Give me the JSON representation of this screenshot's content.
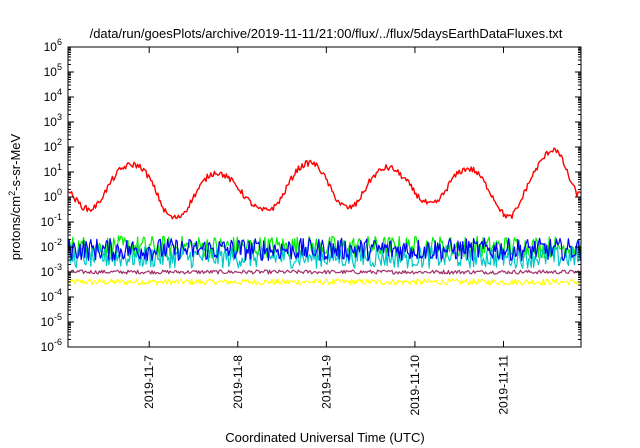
{
  "chart_data": {
    "type": "line",
    "title": "/data/run/goesPlots/archive/2019-11-11/21:00/flux/../flux/5daysEarthDataFluxes.txt",
    "xlabel": "Coordinated Universal Time (UTC)",
    "ylabel": {
      "pre": "protons/cm",
      "sup": "2",
      "post": "-s-sr-MeV"
    },
    "yscale": "log",
    "ylim": [
      1e-06,
      1000000.0
    ],
    "y_ticks": [
      {
        "value": 1e-06,
        "base": "10",
        "exp": "-6"
      },
      {
        "value": 1e-05,
        "base": "10",
        "exp": "-5"
      },
      {
        "value": 0.0001,
        "base": "10",
        "exp": "-4"
      },
      {
        "value": 0.001,
        "base": "10",
        "exp": "-3"
      },
      {
        "value": 0.01,
        "base": "10",
        "exp": "-2"
      },
      {
        "value": 0.1,
        "base": "10",
        "exp": "-1"
      },
      {
        "value": 1,
        "base": "10",
        "exp": "0"
      },
      {
        "value": 10.0,
        "base": "10",
        "exp": "1"
      },
      {
        "value": 100.0,
        "base": "10",
        "exp": "2"
      },
      {
        "value": 1000.0,
        "base": "10",
        "exp": "3"
      },
      {
        "value": 10000.0,
        "base": "10",
        "exp": "4"
      },
      {
        "value": 100000.0,
        "base": "10",
        "exp": "5"
      },
      {
        "value": 1000000.0,
        "base": "10",
        "exp": "6"
      }
    ],
    "xlim": [
      "2019-11-06T02:00",
      "2019-11-11T21:00"
    ],
    "x_ticks": [
      {
        "value": "2019-11-07T00:00",
        "label": "2019-11-7"
      },
      {
        "value": "2019-11-08T00:00",
        "label": "2019-11-8"
      },
      {
        "value": "2019-11-09T00:00",
        "label": "2019-11-9"
      },
      {
        "value": "2019-11-10T00:00",
        "label": "2019-11-10"
      },
      {
        "value": "2019-11-11T00:00",
        "label": "2019-11-11"
      }
    ],
    "grid": false,
    "series": [
      {
        "color": "#ff0000",
        "points": [
          [
            "2019-11-06T02:00",
            2
          ],
          [
            "2019-11-06T04:00",
            0.8
          ],
          [
            "2019-11-06T06:00",
            0.4
          ],
          [
            "2019-11-06T08:00",
            0.3
          ],
          [
            "2019-11-06T10:00",
            0.5
          ],
          [
            "2019-11-06T12:00",
            1.5
          ],
          [
            "2019-11-06T14:00",
            5
          ],
          [
            "2019-11-06T16:00",
            12
          ],
          [
            "2019-11-06T18:00",
            18
          ],
          [
            "2019-11-06T20:00",
            20
          ],
          [
            "2019-11-06T22:00",
            15
          ],
          [
            "2019-11-07T00:00",
            6
          ],
          [
            "2019-11-07T02:00",
            1.5
          ],
          [
            "2019-11-07T04:00",
            0.3
          ],
          [
            "2019-11-07T06:00",
            0.15
          ],
          [
            "2019-11-07T08:00",
            0.15
          ],
          [
            "2019-11-07T10:00",
            0.3
          ],
          [
            "2019-11-07T12:00",
            1
          ],
          [
            "2019-11-07T14:00",
            3
          ],
          [
            "2019-11-07T16:00",
            7
          ],
          [
            "2019-11-07T18:00",
            10
          ],
          [
            "2019-11-07T20:00",
            8
          ],
          [
            "2019-11-07T22:00",
            5
          ],
          [
            "2019-11-08T00:00",
            2.5
          ],
          [
            "2019-11-08T02:00",
            1
          ],
          [
            "2019-11-08T04:00",
            0.5
          ],
          [
            "2019-11-08T06:00",
            0.3
          ],
          [
            "2019-11-08T08:00",
            0.3
          ],
          [
            "2019-11-08T10:00",
            0.4
          ],
          [
            "2019-11-08T12:00",
            1
          ],
          [
            "2019-11-08T14:00",
            4
          ],
          [
            "2019-11-08T16:00",
            12
          ],
          [
            "2019-11-08T18:00",
            20
          ],
          [
            "2019-11-08T20:00",
            25
          ],
          [
            "2019-11-08T22:00",
            15
          ],
          [
            "2019-11-09T00:00",
            5
          ],
          [
            "2019-11-09T02:00",
            1.2
          ],
          [
            "2019-11-09T04:00",
            0.5
          ],
          [
            "2019-11-09T06:00",
            0.35
          ],
          [
            "2019-11-09T08:00",
            0.5
          ],
          [
            "2019-11-09T10:00",
            1.5
          ],
          [
            "2019-11-09T12:00",
            5
          ],
          [
            "2019-11-09T14:00",
            10
          ],
          [
            "2019-11-09T16:00",
            15
          ],
          [
            "2019-11-09T18:00",
            14
          ],
          [
            "2019-11-09T20:00",
            8
          ],
          [
            "2019-11-09T22:00",
            4
          ],
          [
            "2019-11-10T00:00",
            1.5
          ],
          [
            "2019-11-10T02:00",
            0.7
          ],
          [
            "2019-11-10T04:00",
            0.5
          ],
          [
            "2019-11-10T06:00",
            0.6
          ],
          [
            "2019-11-10T08:00",
            1.5
          ],
          [
            "2019-11-10T10:00",
            5
          ],
          [
            "2019-11-10T12:00",
            10
          ],
          [
            "2019-11-10T14:00",
            14
          ],
          [
            "2019-11-10T16:00",
            12
          ],
          [
            "2019-11-10T18:00",
            6
          ],
          [
            "2019-11-10T20:00",
            2
          ],
          [
            "2019-11-10T22:00",
            0.6
          ],
          [
            "2019-11-11T00:00",
            0.2
          ],
          [
            "2019-11-11T02:00",
            0.15
          ],
          [
            "2019-11-11T04:00",
            0.4
          ],
          [
            "2019-11-11T06:00",
            2
          ],
          [
            "2019-11-11T08:00",
            8
          ],
          [
            "2019-11-11T10:00",
            25
          ],
          [
            "2019-11-11T12:00",
            60
          ],
          [
            "2019-11-11T14:00",
            90
          ],
          [
            "2019-11-11T16:00",
            30
          ],
          [
            "2019-11-11T18:00",
            5
          ],
          [
            "2019-11-11T20:00",
            1.2
          ],
          [
            "2019-11-11T21:00",
            1.5
          ]
        ]
      },
      {
        "color": "#00ee00",
        "points": [
          [
            "2019-11-06T02:00",
            0.01
          ],
          [
            "2019-11-11T21:00",
            0.01
          ]
        ]
      },
      {
        "color": "#00c8c8",
        "points": [
          [
            "2019-11-06T02:00",
            0.004
          ],
          [
            "2019-11-11T21:00",
            0.004
          ]
        ]
      },
      {
        "color": "#0000ff",
        "points": [
          [
            "2019-11-06T02:00",
            0.008
          ],
          [
            "2019-11-11T21:00",
            0.008
          ]
        ]
      },
      {
        "color": "#a0306a",
        "points": [
          [
            "2019-11-06T02:00",
            0.001
          ],
          [
            "2019-11-11T21:00",
            0.001
          ]
        ]
      },
      {
        "color": "#ffff00",
        "points": [
          [
            "2019-11-06T02:00",
            0.0004
          ],
          [
            "2019-11-11T21:00",
            0.0004
          ]
        ]
      }
    ]
  }
}
